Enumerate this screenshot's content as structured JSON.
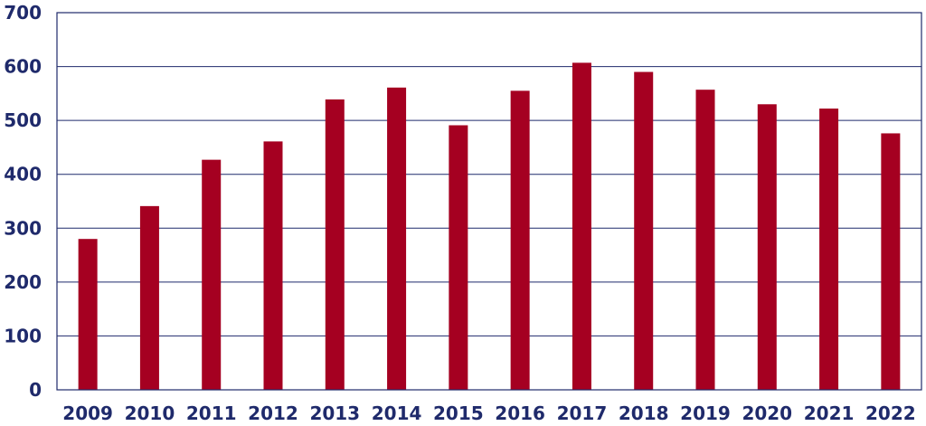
{
  "colors": {
    "bar": "#A50021",
    "axis_text": "#1F2A6B",
    "grid": "#1F2A6B",
    "frame": "#1F2A6B"
  },
  "chart_data": {
    "type": "bar",
    "title": "",
    "xlabel": "",
    "ylabel": "",
    "categories": [
      "2009",
      "2010",
      "2011",
      "2012",
      "2013",
      "2014",
      "2015",
      "2016",
      "2017",
      "2018",
      "2019",
      "2020",
      "2021",
      "2022"
    ],
    "values": [
      280,
      341,
      427,
      461,
      539,
      561,
      491,
      555,
      607,
      590,
      557,
      530,
      522,
      476
    ],
    "ylim": [
      0,
      700
    ],
    "yticks": [
      0,
      100,
      200,
      300,
      400,
      500,
      600,
      700
    ],
    "grid": true,
    "legend": "none"
  }
}
